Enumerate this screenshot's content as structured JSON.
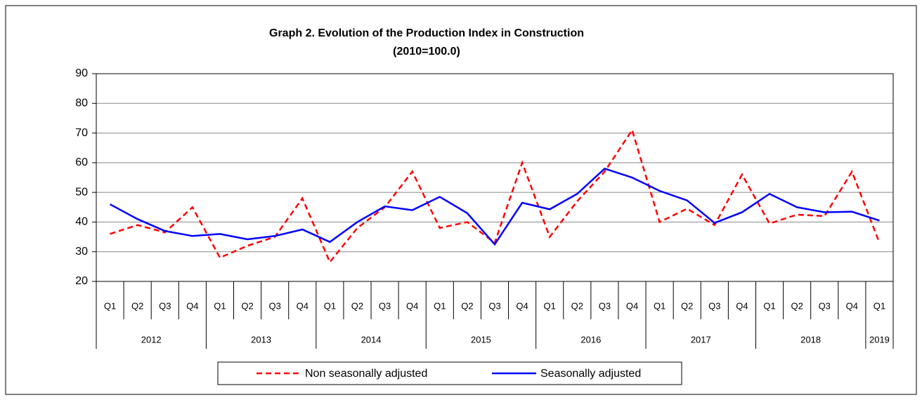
{
  "chart_data": {
    "type": "line",
    "title": "Graph 2. Evolution of the Production Index in Construction",
    "subtitle": "(2010=100.0)",
    "categories": [
      "Q1",
      "Q2",
      "Q3",
      "Q4",
      "Q1",
      "Q2",
      "Q3",
      "Q4",
      "Q1",
      "Q2",
      "Q3",
      "Q4",
      "Q1",
      "Q2",
      "Q3",
      "Q4",
      "Q1",
      "Q2",
      "Q3",
      "Q4",
      "Q1",
      "Q2",
      "Q3",
      "Q4",
      "Q1",
      "Q2",
      "Q3",
      "Q4",
      "Q1"
    ],
    "years": [
      "2012",
      "2013",
      "2014",
      "2015",
      "2016",
      "2017",
      "2018",
      "2019"
    ],
    "series": [
      {
        "name": "Non seasonally adjusted",
        "color": "#ff0000",
        "dashed": true,
        "values": [
          36,
          39,
          36.5,
          45,
          28,
          32,
          35,
          48,
          26.5,
          38,
          45,
          57,
          38,
          40,
          33,
          60,
          35,
          47,
          57,
          71,
          40,
          44.5,
          39,
          56,
          39.5,
          42.5,
          42,
          57,
          33
        ]
      },
      {
        "name": "Seasonally adjusted",
        "color": "#0000ff",
        "dashed": false,
        "values": [
          46,
          41,
          37,
          35.3,
          36,
          34.2,
          35.3,
          37.5,
          33.3,
          40,
          45.3,
          44,
          48.5,
          43,
          32.5,
          46.5,
          44.3,
          49.5,
          58,
          55,
          50.5,
          47.3,
          39.7,
          43.3,
          49.5,
          45,
          43.3,
          43.5,
          40.5
        ]
      }
    ],
    "ylim": [
      20,
      90
    ],
    "yticks": [
      20,
      30,
      40,
      50,
      60,
      70,
      80,
      90
    ],
    "grid": true
  }
}
